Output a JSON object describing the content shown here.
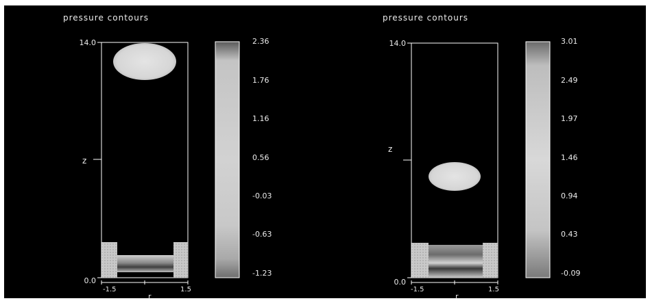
{
  "figure": {
    "background": "#000000",
    "frame_color": "#ffffff",
    "text_color": "#ececec"
  },
  "chart_data": [
    {
      "type": "heatmap",
      "title": "pressure contours",
      "xlabel": "r",
      "ylabel": "z",
      "x_tick_labels": [
        "-1.5",
        "1.5"
      ],
      "y_tick_labels": [
        "0.0",
        "14.0"
      ],
      "xlim": [
        -1.5,
        1.5
      ],
      "ylim": [
        0.0,
        14.0
      ],
      "colorbar": {
        "tick_labels": [
          "2.36",
          "1.76",
          "1.16",
          "0.56",
          "-0.03",
          "-0.63",
          "-1.23"
        ],
        "range": [
          -1.23,
          2.36
        ]
      },
      "features": [
        {
          "name": "bubble",
          "shape": "ellipse",
          "r_center": 0.0,
          "z_center": 12.6,
          "r_radius": 1.05,
          "z_radius": 1.05
        },
        {
          "name": "wall",
          "shape": "rect",
          "r_range": [
            -1.5,
            -1.15
          ],
          "z_range": [
            0.0,
            2.1
          ]
        },
        {
          "name": "wall",
          "shape": "rect",
          "r_range": [
            1.15,
            1.5
          ],
          "z_range": [
            0.0,
            2.1
          ]
        },
        {
          "name": "pool",
          "shape": "rect",
          "r_range": [
            -1.15,
            1.15
          ],
          "z_range": [
            0.4,
            1.35
          ]
        }
      ]
    },
    {
      "type": "heatmap",
      "title": "pressure contours",
      "xlabel": "r",
      "ylabel": "z",
      "x_tick_labels": [
        "-1.5",
        "1.5"
      ],
      "y_tick_labels": [
        "0.0",
        "14.0"
      ],
      "xlim": [
        -1.5,
        1.5
      ],
      "ylim": [
        0.0,
        14.0
      ],
      "colorbar": {
        "tick_labels": [
          "3.01",
          "2.49",
          "1.97",
          "1.46",
          "0.94",
          "0.43",
          "-0.09"
        ],
        "range": [
          -0.09,
          3.01
        ]
      },
      "features": [
        {
          "name": "bubble",
          "shape": "ellipse",
          "r_center": 0.0,
          "z_center": 5.9,
          "r_radius": 0.95,
          "z_radius": 0.75
        },
        {
          "name": "wall",
          "shape": "rect",
          "r_range": [
            -1.5,
            -1.1
          ],
          "z_range": [
            0.0,
            2.0
          ]
        },
        {
          "name": "wall",
          "shape": "rect",
          "r_range": [
            1.1,
            1.5
          ],
          "z_range": [
            0.0,
            2.0
          ]
        },
        {
          "name": "pool",
          "shape": "rect",
          "r_range": [
            -1.1,
            1.1
          ],
          "z_range": [
            0.0,
            2.0
          ]
        }
      ]
    }
  ]
}
